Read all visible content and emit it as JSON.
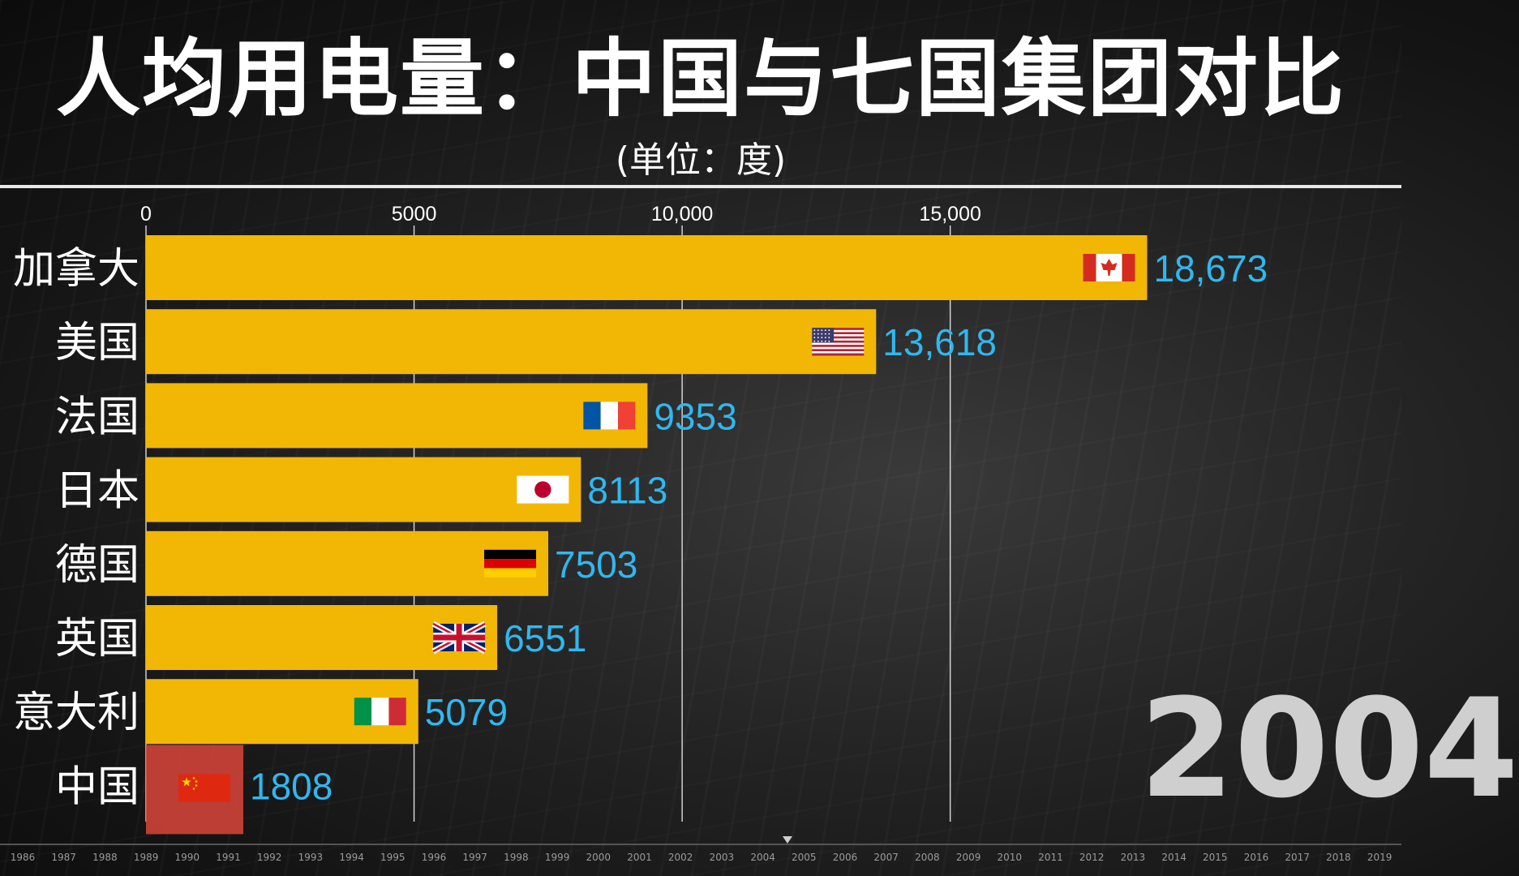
{
  "header": {
    "title": "人均用电量：中国与七国集团对比",
    "subtitle": "(单位：度)"
  },
  "current_year": "2004",
  "chart_data": {
    "type": "bar",
    "orientation": "horizontal",
    "title": "人均用电量：中国与七国集团对比",
    "subtitle": "(单位：度)",
    "categories": [
      "加拿大",
      "美国",
      "法国",
      "日本",
      "德国",
      "英国",
      "意大利",
      "中国"
    ],
    "values": [
      18673,
      13618,
      9353,
      8113,
      7503,
      6551,
      5079,
      1808
    ],
    "value_labels": [
      "18,673",
      "13,618",
      "9353",
      "8113",
      "7503",
      "6551",
      "5079",
      "1808"
    ],
    "flags": [
      "canada-flag",
      "usa-flag",
      "france-flag",
      "japan-flag",
      "germany-flag",
      "uk-flag",
      "italy-flag",
      "china-flag"
    ],
    "bar_colors": [
      "#f2b705",
      "#f2b705",
      "#f2b705",
      "#f2b705",
      "#f2b705",
      "#f2b705",
      "#f2b705",
      "#d9453a"
    ],
    "value_label_color": "#2fb8f0",
    "category_label_color": "#ffffff",
    "x_ticks": [
      0,
      5000,
      10000,
      15000
    ],
    "x_tick_labels": [
      "0",
      "5000",
      "10,000",
      "15,000"
    ],
    "xlim": [
      0,
      23400
    ],
    "grid": true
  },
  "timeline": {
    "years": [
      "1986",
      "1987",
      "1988",
      "1989",
      "1990",
      "1991",
      "1992",
      "1993",
      "1994",
      "1995",
      "1996",
      "1997",
      "1998",
      "1999",
      "2000",
      "2001",
      "2002",
      "2003",
      "2004",
      "2005",
      "2006",
      "2007",
      "2008",
      "2009",
      "2010",
      "2011",
      "2012",
      "2013",
      "2014",
      "2015",
      "2016",
      "2017",
      "2018",
      "2019"
    ],
    "current": 2004.6
  }
}
